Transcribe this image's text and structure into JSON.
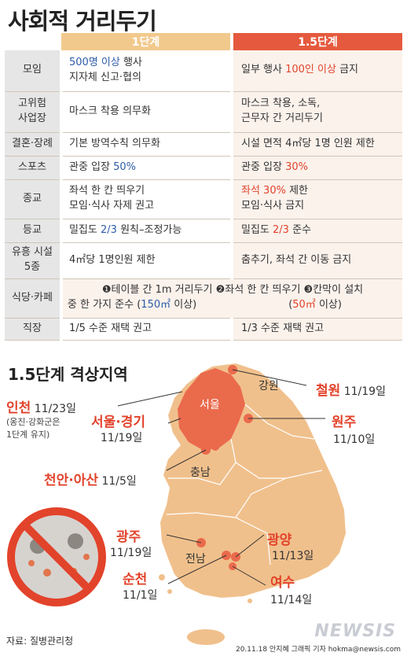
{
  "title": "사회적 거리두기",
  "table": {
    "header_1": "1단계",
    "header_2": "1.5단계",
    "rows": [
      {
        "label": "모임",
        "c1a": "500명 이상",
        "c1b": " 행사",
        "c1c": "지자체 신고·협의",
        "c2a": "일부 행사 ",
        "c2b": "100인 이상",
        "c2c": " 금지"
      },
      {
        "label1": "고위험",
        "label2": "사업장",
        "c1": "마스크 착용 의무화",
        "c2a": "마스크 착용, 소독,",
        "c2b": "근무자 간 거리두기"
      },
      {
        "label": "결혼·장례",
        "c1": "기본 방역수칙 의무화",
        "c2": "시설 면적 4㎡당 1명 인원 제한"
      },
      {
        "label": "스포츠",
        "c1a": "관중 입장 ",
        "c1b": "50%",
        "c2a": "관중 입장 ",
        "c2b": "30%"
      },
      {
        "label": "종교",
        "c1a": "좌석 한 칸 띄우기",
        "c1b": "모임·식사 자제 권고",
        "c2a": "좌석 30%",
        "c2b": " 제한",
        "c2c": "모임·식사 금지"
      },
      {
        "label": "등교",
        "c1a": "밀집도 ",
        "c1b": "2/3",
        "c1c": " 원칙–조정가능",
        "c2a": "밀집도 ",
        "c2b": "2/3",
        "c2c": " 준수"
      },
      {
        "label1": "유흥 시설",
        "label2": "5종",
        "c1": "4㎡당 1명인원 제한",
        "c2": "춤추기, 좌석 간 이동 금지"
      },
      {
        "label": "식당·카페",
        "line1": "❶테이블 간 1m 거리두기 ❷좌석 한 칸 띄우기 ❸칸막이 설치",
        "line2a": "중 한 가지 준수 (",
        "line2b": "150㎡",
        "line2c": " 이상)",
        "line2d": "(",
        "line2e": "50㎡",
        "line2f": " 이상)"
      },
      {
        "label": "직장",
        "c1": "1/5 수준 재택 권고",
        "c2": "1/3 수준 재택 권고"
      }
    ]
  },
  "subtitle": "1.5단계 격상지역",
  "map": {
    "regions": {
      "gangwon": "강원",
      "seoul": "서울",
      "chungnam": "충남",
      "jeonnam": "전남"
    },
    "areas": [
      {
        "name": "인천",
        "date": "11/23일",
        "note1": "(옹진·강화군은",
        "note2": "1단계 유지)"
      },
      {
        "name": "서울·경기",
        "date": "11/19일"
      },
      {
        "name": "천안·아산",
        "date": "11/5일"
      },
      {
        "name": "철원",
        "date": "11/19일"
      },
      {
        "name": "원주",
        "date": "11/10일"
      },
      {
        "name": "광주",
        "date": "11/19일"
      },
      {
        "name": "순천",
        "date": "11/1일"
      },
      {
        "name": "광양",
        "date": "11/13일"
      },
      {
        "name": "여수",
        "date": "11/14일"
      }
    ]
  },
  "source": "자료: 질병관리청",
  "credit": "20.11.18 안지혜 그래픽 기자 hokma@newsis.com",
  "watermark": "NEWSIS",
  "colors": {
    "stage1": "#f2c98c",
    "stage15": "#e55a3e",
    "map_land": "#f0c08c",
    "map_hot": "#ea6a4c",
    "accent_red": "#e2432b",
    "accent_blue": "#2d5ca8"
  }
}
